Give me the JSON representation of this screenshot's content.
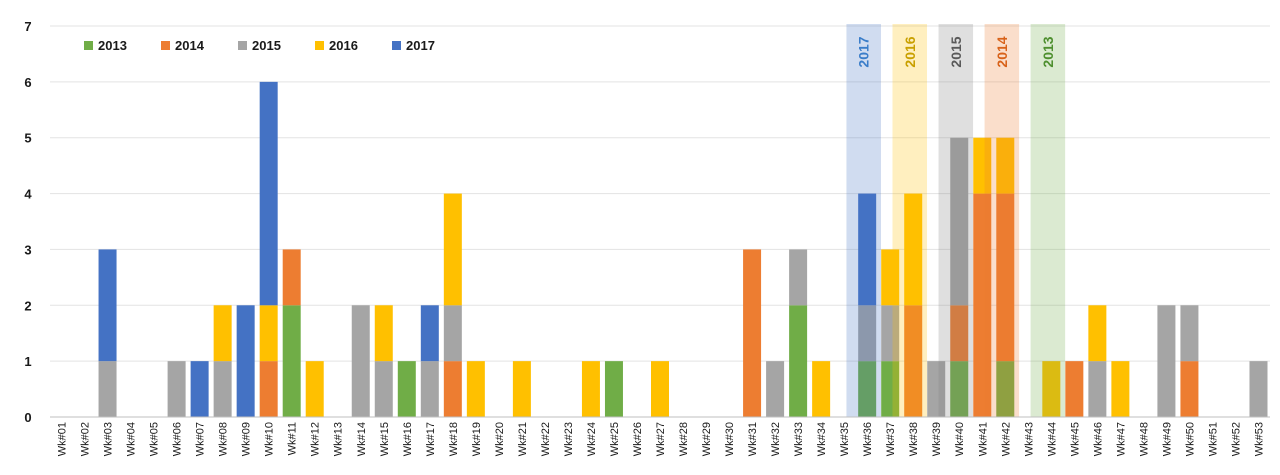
{
  "chart_data": {
    "type": "bar",
    "stacked": true,
    "title": "",
    "xlabel": "",
    "ylabel": "",
    "ylim": [
      0,
      7
    ],
    "yticks": [
      0,
      1,
      2,
      3,
      4,
      5,
      6,
      7
    ],
    "grid": "horizontal",
    "legend_position": "top-left",
    "categories": [
      "Wk#01",
      "Wk#02",
      "Wk#03",
      "Wk#04",
      "Wk#05",
      "Wk#06",
      "Wk#07",
      "Wk#08",
      "Wk#09",
      "Wk#10",
      "Wk#11",
      "Wk#12",
      "Wk#13",
      "Wk#14",
      "Wk#15",
      "Wk#16",
      "Wk#17",
      "Wk#18",
      "Wk#19",
      "Wk#20",
      "Wk#21",
      "Wk#22",
      "Wk#23",
      "Wk#24",
      "Wk#25",
      "Wk#26",
      "Wk#27",
      "Wk#28",
      "Wk#29",
      "Wk#30",
      "Wk#31",
      "Wk#32",
      "Wk#33",
      "Wk#34",
      "Wk#35",
      "Wk#36",
      "Wk#37",
      "Wk#38",
      "Wk#39",
      "Wk#40",
      "Wk#41",
      "Wk#42",
      "Wk#43",
      "Wk#44",
      "Wk#45",
      "Wk#46",
      "Wk#47",
      "Wk#48",
      "Wk#49",
      "Wk#50",
      "Wk#51",
      "Wk#52",
      "Wk#53"
    ],
    "series": [
      {
        "name": "2013",
        "color": "#70AD47",
        "values": [
          0,
          0,
          0,
          0,
          0,
          0,
          0,
          0,
          0,
          0,
          2,
          0,
          0,
          0,
          0,
          1,
          0,
          0,
          0,
          0,
          0,
          0,
          0,
          0,
          1,
          0,
          0,
          0,
          0,
          0,
          0,
          0,
          2,
          0,
          0,
          1,
          1,
          0,
          0,
          1,
          0,
          1,
          0,
          0,
          0,
          0,
          0,
          0,
          0,
          0,
          0,
          0,
          0
        ]
      },
      {
        "name": "2014",
        "color": "#ED7D31",
        "values": [
          0,
          0,
          0,
          0,
          0,
          0,
          0,
          0,
          0,
          1,
          1,
          0,
          0,
          0,
          0,
          0,
          0,
          1,
          0,
          0,
          0,
          0,
          0,
          0,
          0,
          0,
          0,
          0,
          0,
          0,
          3,
          0,
          0,
          0,
          0,
          0,
          0,
          2,
          0,
          1,
          4,
          3,
          0,
          0,
          1,
          0,
          0,
          0,
          0,
          1,
          0,
          0,
          0
        ]
      },
      {
        "name": "2015",
        "color": "#A5A5A5",
        "values": [
          0,
          0,
          1,
          0,
          0,
          1,
          0,
          1,
          0,
          0,
          0,
          0,
          0,
          2,
          1,
          0,
          1,
          1,
          0,
          0,
          0,
          0,
          0,
          0,
          0,
          0,
          0,
          0,
          0,
          0,
          0,
          1,
          1,
          0,
          0,
          1,
          1,
          0,
          1,
          3,
          0,
          0,
          0,
          0,
          0,
          1,
          0,
          0,
          2,
          1,
          0,
          0,
          1
        ]
      },
      {
        "name": "2016",
        "color": "#FFC000",
        "values": [
          0,
          0,
          0,
          0,
          0,
          0,
          0,
          1,
          0,
          1,
          0,
          1,
          0,
          0,
          1,
          0,
          0,
          2,
          1,
          0,
          1,
          0,
          0,
          1,
          0,
          0,
          1,
          0,
          0,
          0,
          0,
          0,
          0,
          1,
          0,
          0,
          1,
          2,
          0,
          0,
          1,
          1,
          0,
          1,
          0,
          1,
          1,
          0,
          0,
          0,
          0,
          0,
          0
        ]
      },
      {
        "name": "2017",
        "color": "#4472C4",
        "values": [
          0,
          0,
          2,
          0,
          0,
          0,
          1,
          0,
          2,
          4,
          0,
          0,
          0,
          0,
          0,
          0,
          1,
          0,
          0,
          0,
          0,
          0,
          0,
          0,
          0,
          0,
          0,
          0,
          0,
          0,
          0,
          0,
          0,
          0,
          0,
          2,
          0,
          0,
          0,
          0,
          0,
          0,
          0,
          0,
          0,
          0,
          0,
          0,
          0,
          0,
          0,
          0,
          0
        ]
      }
    ],
    "highlight_bands": [
      {
        "label": "2017",
        "category": "Wk#35",
        "color": "#4472C4",
        "label_color": "#3A7DC9"
      },
      {
        "label": "2016",
        "category": "Wk#37",
        "color": "#FFC000",
        "label_color": "#C9A000"
      },
      {
        "label": "2015",
        "category": "Wk#39",
        "color": "#808080",
        "label_color": "#5A5A5A"
      },
      {
        "label": "2014",
        "category": "Wk#41",
        "color": "#ED7D31",
        "label_color": "#D8621A"
      },
      {
        "label": "2013",
        "category": "Wk#43",
        "color": "#70AD47",
        "label_color": "#4E8F2F"
      }
    ]
  }
}
